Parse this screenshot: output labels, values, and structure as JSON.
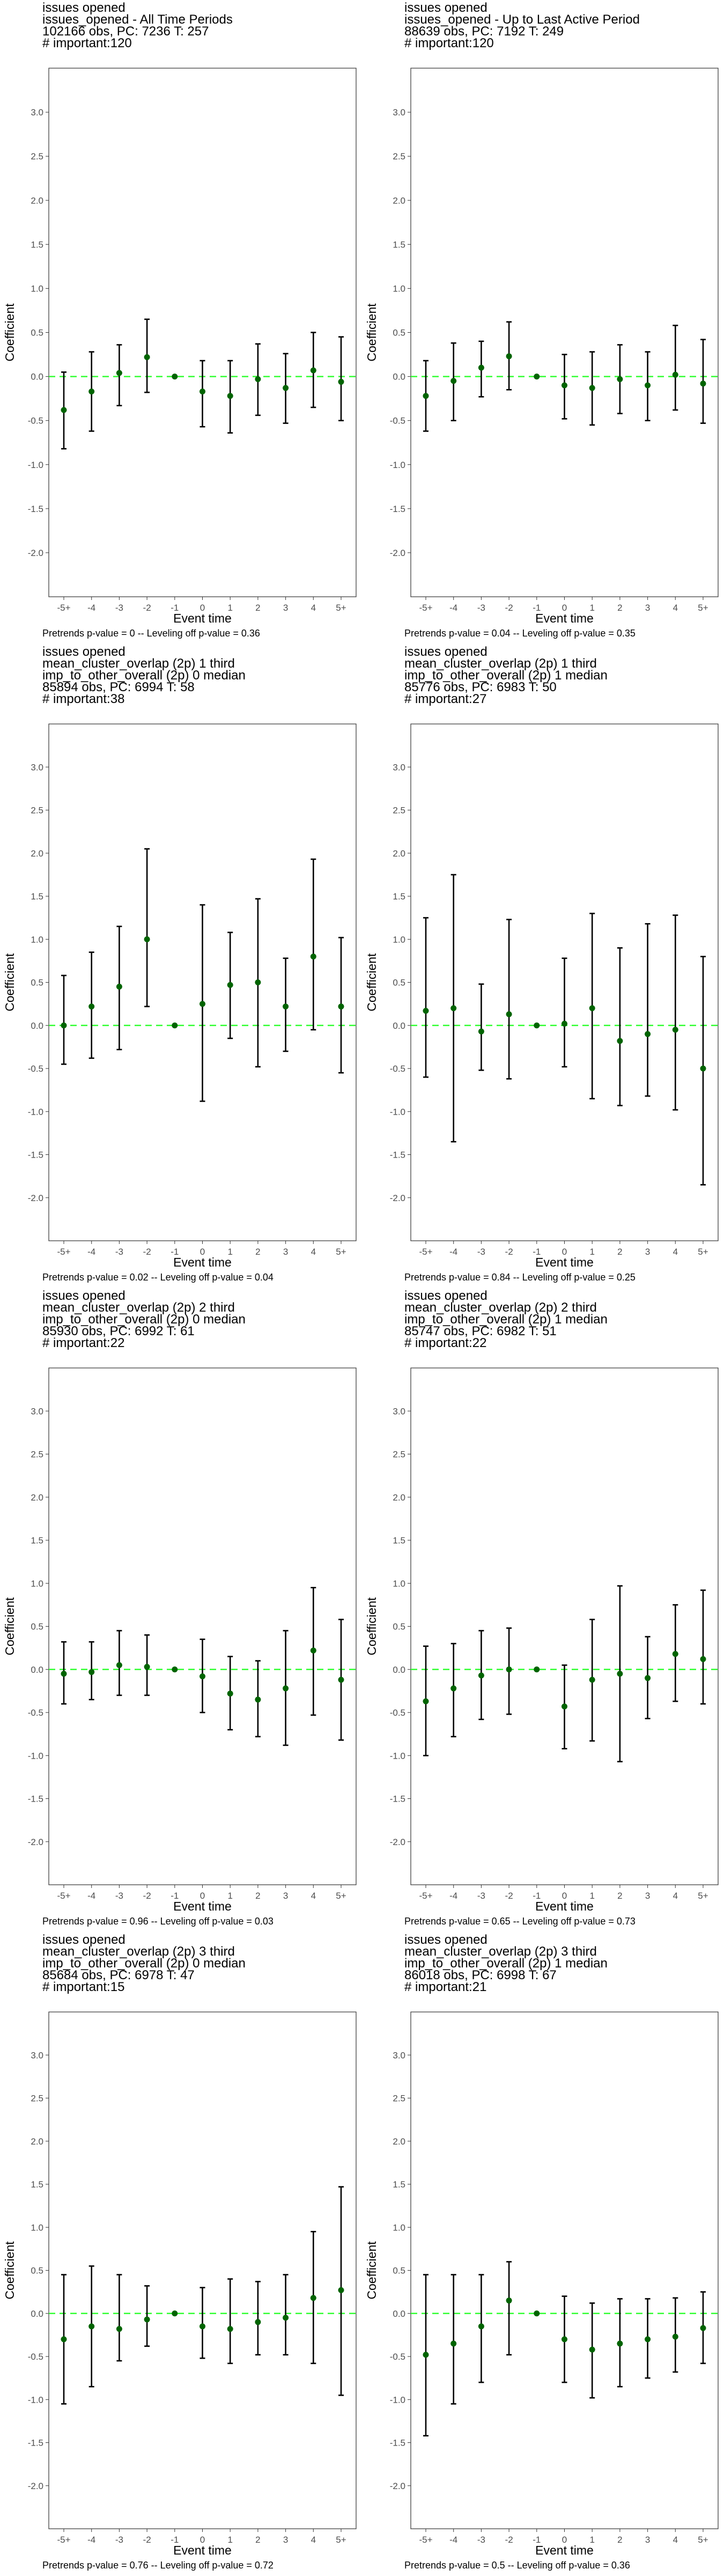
{
  "chart_data": [
    {
      "type": "errorbar",
      "title_lines": [
        "issues opened",
        "issues_opened - All Time Periods",
        "102166 obs, PC: 7236 T: 257",
        "# important:120"
      ],
      "xlabel": "Event time",
      "ylabel": "Coefficient",
      "categories": [
        "-5+",
        "-4",
        "-3",
        "-2",
        "-1",
        "0",
        "1",
        "2",
        "3",
        "4",
        "5+"
      ],
      "estimate": [
        -0.38,
        -0.17,
        0.04,
        0.22,
        0.0,
        -0.17,
        -0.22,
        -0.03,
        -0.13,
        0.07,
        -0.06
      ],
      "ci_low": [
        -0.82,
        -0.62,
        -0.33,
        -0.18,
        0.0,
        -0.57,
        -0.64,
        -0.44,
        -0.53,
        -0.35,
        -0.5
      ],
      "ci_high": [
        0.05,
        0.28,
        0.36,
        0.65,
        0.0,
        0.18,
        0.18,
        0.37,
        0.26,
        0.5,
        0.45
      ],
      "ylim": [
        -2.5,
        3.5
      ],
      "yticks": [
        -2.0,
        -1.5,
        -1.0,
        -0.5,
        0.0,
        0.5,
        1.0,
        1.5,
        2.0,
        2.5,
        3.0
      ],
      "reference_line": 0.0,
      "footer": "Pretrends p-value = 0 -- Leveling off p-value = 0.36"
    },
    {
      "type": "errorbar",
      "title_lines": [
        "issues opened",
        "issues_opened - Up to Last Active Period",
        "88639 obs, PC: 7192 T: 249",
        "# important:120"
      ],
      "xlabel": "Event time",
      "ylabel": "Coefficient",
      "categories": [
        "-5+",
        "-4",
        "-3",
        "-2",
        "-1",
        "0",
        "1",
        "2",
        "3",
        "4",
        "5+"
      ],
      "estimate": [
        -0.22,
        -0.05,
        0.1,
        0.23,
        0.0,
        -0.1,
        -0.13,
        -0.03,
        -0.1,
        0.02,
        -0.08
      ],
      "ci_low": [
        -0.62,
        -0.5,
        -0.23,
        -0.15,
        0.0,
        -0.48,
        -0.55,
        -0.42,
        -0.5,
        -0.38,
        -0.53
      ],
      "ci_high": [
        0.18,
        0.38,
        0.4,
        0.62,
        0.0,
        0.25,
        0.28,
        0.36,
        0.28,
        0.58,
        0.42
      ],
      "ylim": [
        -2.5,
        3.5
      ],
      "yticks": [
        -2.0,
        -1.5,
        -1.0,
        -0.5,
        0.0,
        0.5,
        1.0,
        1.5,
        2.0,
        2.5,
        3.0
      ],
      "reference_line": 0.0,
      "footer": "Pretrends p-value = 0.04 -- Leveling off p-value = 0.35"
    },
    {
      "type": "errorbar",
      "title_lines": [
        "issues opened",
        "mean_cluster_overlap (2p) 1 third",
        "imp_to_other_overall (2p) 0 median",
        "85894 obs, PC: 6994 T: 58",
        "# important:38"
      ],
      "xlabel": "Event time",
      "ylabel": "Coefficient",
      "categories": [
        "-5+",
        "-4",
        "-3",
        "-2",
        "-1",
        "0",
        "1",
        "2",
        "3",
        "4",
        "5+"
      ],
      "estimate": [
        0.0,
        0.22,
        0.45,
        1.0,
        0.0,
        0.25,
        0.47,
        0.5,
        0.22,
        0.8,
        0.22
      ],
      "ci_low": [
        -0.45,
        -0.38,
        -0.28,
        0.22,
        0.0,
        -0.88,
        -0.15,
        -0.48,
        -0.3,
        -0.05,
        -0.55
      ],
      "ci_high": [
        0.58,
        0.85,
        1.15,
        2.05,
        0.0,
        1.4,
        1.08,
        1.47,
        0.78,
        1.93,
        1.02
      ],
      "ylim": [
        -2.5,
        3.5
      ],
      "yticks": [
        -2.0,
        -1.5,
        -1.0,
        -0.5,
        0.0,
        0.5,
        1.0,
        1.5,
        2.0,
        2.5,
        3.0
      ],
      "reference_line": 0.0,
      "footer": "Pretrends p-value = 0.02 -- Leveling off p-value = 0.04"
    },
    {
      "type": "errorbar",
      "title_lines": [
        "issues opened",
        "mean_cluster_overlap (2p) 1 third",
        "imp_to_other_overall (2p) 1 median",
        "85776 obs, PC: 6983 T: 50",
        "# important:27"
      ],
      "xlabel": "Event time",
      "ylabel": "Coefficient",
      "categories": [
        "-5+",
        "-4",
        "-3",
        "-2",
        "-1",
        "0",
        "1",
        "2",
        "3",
        "4",
        "5+"
      ],
      "estimate": [
        0.17,
        0.2,
        -0.07,
        0.13,
        0.0,
        0.02,
        0.2,
        -0.18,
        -0.1,
        -0.05,
        -0.5
      ],
      "ci_low": [
        -0.6,
        -1.35,
        -0.52,
        -0.62,
        0.0,
        -0.48,
        -0.85,
        -0.93,
        -0.82,
        -0.98,
        -1.85
      ],
      "ci_high": [
        1.25,
        1.75,
        0.48,
        1.23,
        0.0,
        0.78,
        1.3,
        0.9,
        1.18,
        1.28,
        0.8
      ],
      "ylim": [
        -2.5,
        3.5
      ],
      "yticks": [
        -2.0,
        -1.5,
        -1.0,
        -0.5,
        0.0,
        0.5,
        1.0,
        1.5,
        2.0,
        2.5,
        3.0
      ],
      "reference_line": 0.0,
      "footer": "Pretrends p-value = 0.84 -- Leveling off p-value = 0.25"
    },
    {
      "type": "errorbar",
      "title_lines": [
        "issues opened",
        "mean_cluster_overlap (2p) 2 third",
        "imp_to_other_overall (2p) 0 median",
        "85930 obs, PC: 6992 T: 61",
        "# important:22"
      ],
      "xlabel": "Event time",
      "ylabel": "Coefficient",
      "categories": [
        "-5+",
        "-4",
        "-3",
        "-2",
        "-1",
        "0",
        "1",
        "2",
        "3",
        "4",
        "5+"
      ],
      "estimate": [
        -0.05,
        -0.03,
        0.05,
        0.03,
        0.0,
        -0.08,
        -0.28,
        -0.35,
        -0.22,
        0.22,
        -0.12
      ],
      "ci_low": [
        -0.4,
        -0.35,
        -0.3,
        -0.3,
        0.0,
        -0.5,
        -0.7,
        -0.78,
        -0.88,
        -0.53,
        -0.82
      ],
      "ci_high": [
        0.32,
        0.32,
        0.45,
        0.4,
        0.0,
        0.35,
        0.15,
        0.1,
        0.45,
        0.95,
        0.58
      ],
      "ylim": [
        -2.5,
        3.5
      ],
      "yticks": [
        -2.0,
        -1.5,
        -1.0,
        -0.5,
        0.0,
        0.5,
        1.0,
        1.5,
        2.0,
        2.5,
        3.0
      ],
      "reference_line": 0.0,
      "footer": "Pretrends p-value = 0.96 -- Leveling off p-value = 0.03"
    },
    {
      "type": "errorbar",
      "title_lines": [
        "issues opened",
        "mean_cluster_overlap (2p) 2 third",
        "imp_to_other_overall (2p) 1 median",
        "85747 obs, PC: 6982 T: 51",
        "# important:22"
      ],
      "xlabel": "Event time",
      "ylabel": "Coefficient",
      "categories": [
        "-5+",
        "-4",
        "-3",
        "-2",
        "-1",
        "0",
        "1",
        "2",
        "3",
        "4",
        "5+"
      ],
      "estimate": [
        -0.37,
        -0.22,
        -0.07,
        0.0,
        0.0,
        -0.43,
        -0.12,
        -0.05,
        -0.1,
        0.18,
        0.12
      ],
      "ci_low": [
        -1.0,
        -0.78,
        -0.58,
        -0.52,
        0.0,
        -0.92,
        -0.83,
        -1.07,
        -0.57,
        -0.37,
        -0.4
      ],
      "ci_high": [
        0.27,
        0.3,
        0.45,
        0.48,
        0.0,
        0.05,
        0.58,
        0.97,
        0.38,
        0.75,
        0.92
      ],
      "ylim": [
        -2.5,
        3.5
      ],
      "yticks": [
        -2.0,
        -1.5,
        -1.0,
        -0.5,
        0.0,
        0.5,
        1.0,
        1.5,
        2.0,
        2.5,
        3.0
      ],
      "reference_line": 0.0,
      "footer": "Pretrends p-value = 0.65 -- Leveling off p-value = 0.73"
    },
    {
      "type": "errorbar",
      "title_lines": [
        "issues opened",
        "mean_cluster_overlap (2p) 3 third",
        "imp_to_other_overall (2p) 0 median",
        "85684 obs, PC: 6978 T: 47",
        "# important:15"
      ],
      "xlabel": "Event time",
      "ylabel": "Coefficient",
      "categories": [
        "-5+",
        "-4",
        "-3",
        "-2",
        "-1",
        "0",
        "1",
        "2",
        "3",
        "4",
        "5+"
      ],
      "estimate": [
        -0.3,
        -0.15,
        -0.18,
        -0.07,
        0.0,
        -0.15,
        -0.18,
        -0.1,
        -0.05,
        0.18,
        0.27
      ],
      "ci_low": [
        -1.05,
        -0.85,
        -0.55,
        -0.38,
        0.0,
        -0.52,
        -0.58,
        -0.48,
        -0.48,
        -0.58,
        -0.95
      ],
      "ci_high": [
        0.45,
        0.55,
        0.45,
        0.32,
        0.0,
        0.3,
        0.4,
        0.37,
        0.45,
        0.95,
        1.47
      ],
      "ylim": [
        -2.5,
        3.5
      ],
      "yticks": [
        -2.0,
        -1.5,
        -1.0,
        -0.5,
        0.0,
        0.5,
        1.0,
        1.5,
        2.0,
        2.5,
        3.0
      ],
      "reference_line": 0.0,
      "footer": "Pretrends p-value = 0.76 -- Leveling off p-value = 0.72"
    },
    {
      "type": "errorbar",
      "title_lines": [
        "issues opened",
        "mean_cluster_overlap (2p) 3 third",
        "imp_to_other_overall (2p) 1 median",
        "86018 obs, PC: 6998 T: 67",
        "# important:21"
      ],
      "xlabel": "Event time",
      "ylabel": "Coefficient",
      "categories": [
        "-5+",
        "-4",
        "-3",
        "-2",
        "-1",
        "0",
        "1",
        "2",
        "3",
        "4",
        "5+"
      ],
      "estimate": [
        -0.48,
        -0.35,
        -0.15,
        0.15,
        0.0,
        -0.3,
        -0.42,
        -0.35,
        -0.3,
        -0.27,
        -0.17
      ],
      "ci_low": [
        -1.42,
        -1.05,
        -0.8,
        -0.48,
        0.0,
        -0.8,
        -0.98,
        -0.85,
        -0.75,
        -0.68,
        -0.58
      ],
      "ci_high": [
        0.45,
        0.45,
        0.45,
        0.6,
        0.0,
        0.2,
        0.12,
        0.17,
        0.17,
        0.18,
        0.25
      ],
      "ylim": [
        -2.5,
        3.5
      ],
      "yticks": [
        -2.0,
        -1.5,
        -1.0,
        -0.5,
        0.0,
        0.5,
        1.0,
        1.5,
        2.0,
        2.5,
        3.0
      ],
      "reference_line": 0.0,
      "footer": "Pretrends p-value = 0.5 -- Leveling off p-value = 0.36"
    }
  ],
  "colors": {
    "point": "#006400",
    "errorbar": "#000000",
    "reference_line": "#33ff33",
    "tick_label": "#4d4d4d",
    "frame": "#333333"
  }
}
